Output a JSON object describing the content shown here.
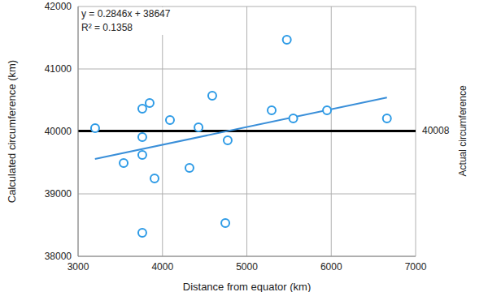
{
  "chart_data": {
    "type": "scatter",
    "x_label": "Distance from equator (km)",
    "y_label": "Calculated circumference (km)",
    "x": [
      3202,
      3540,
      3761,
      3761,
      3761,
      3848,
      3761,
      3906,
      4089,
      4320,
      4427,
      4590,
      4745,
      4773,
      5294,
      5474,
      5550,
      5950,
      6660
    ],
    "values": [
      40052,
      39494,
      40364,
      39909,
      39623,
      40455,
      38377,
      39247,
      40182,
      39416,
      40065,
      40571,
      38532,
      39857,
      40338,
      41468,
      40208,
      40338,
      40208
    ],
    "color": "#2e9be6",
    "marker": "circle",
    "xlim": [
      3000,
      7000
    ],
    "xticks": [
      3000,
      4000,
      5000,
      6000,
      7000
    ],
    "ylim": [
      38000,
      42000
    ],
    "yticks": [
      38000,
      39000,
      40000,
      41000,
      42000
    ],
    "grid": true,
    "trendline": {
      "x": [
        3200,
        6660
      ],
      "values": [
        39558,
        40542
      ],
      "color": "#3a8fd9",
      "annotations": [
        "y = 0.2846x + 38647",
        "R² = 0.1358"
      ]
    },
    "reference_line": {
      "value": 40008,
      "label": "Actual circumference",
      "color": "#000000"
    }
  }
}
